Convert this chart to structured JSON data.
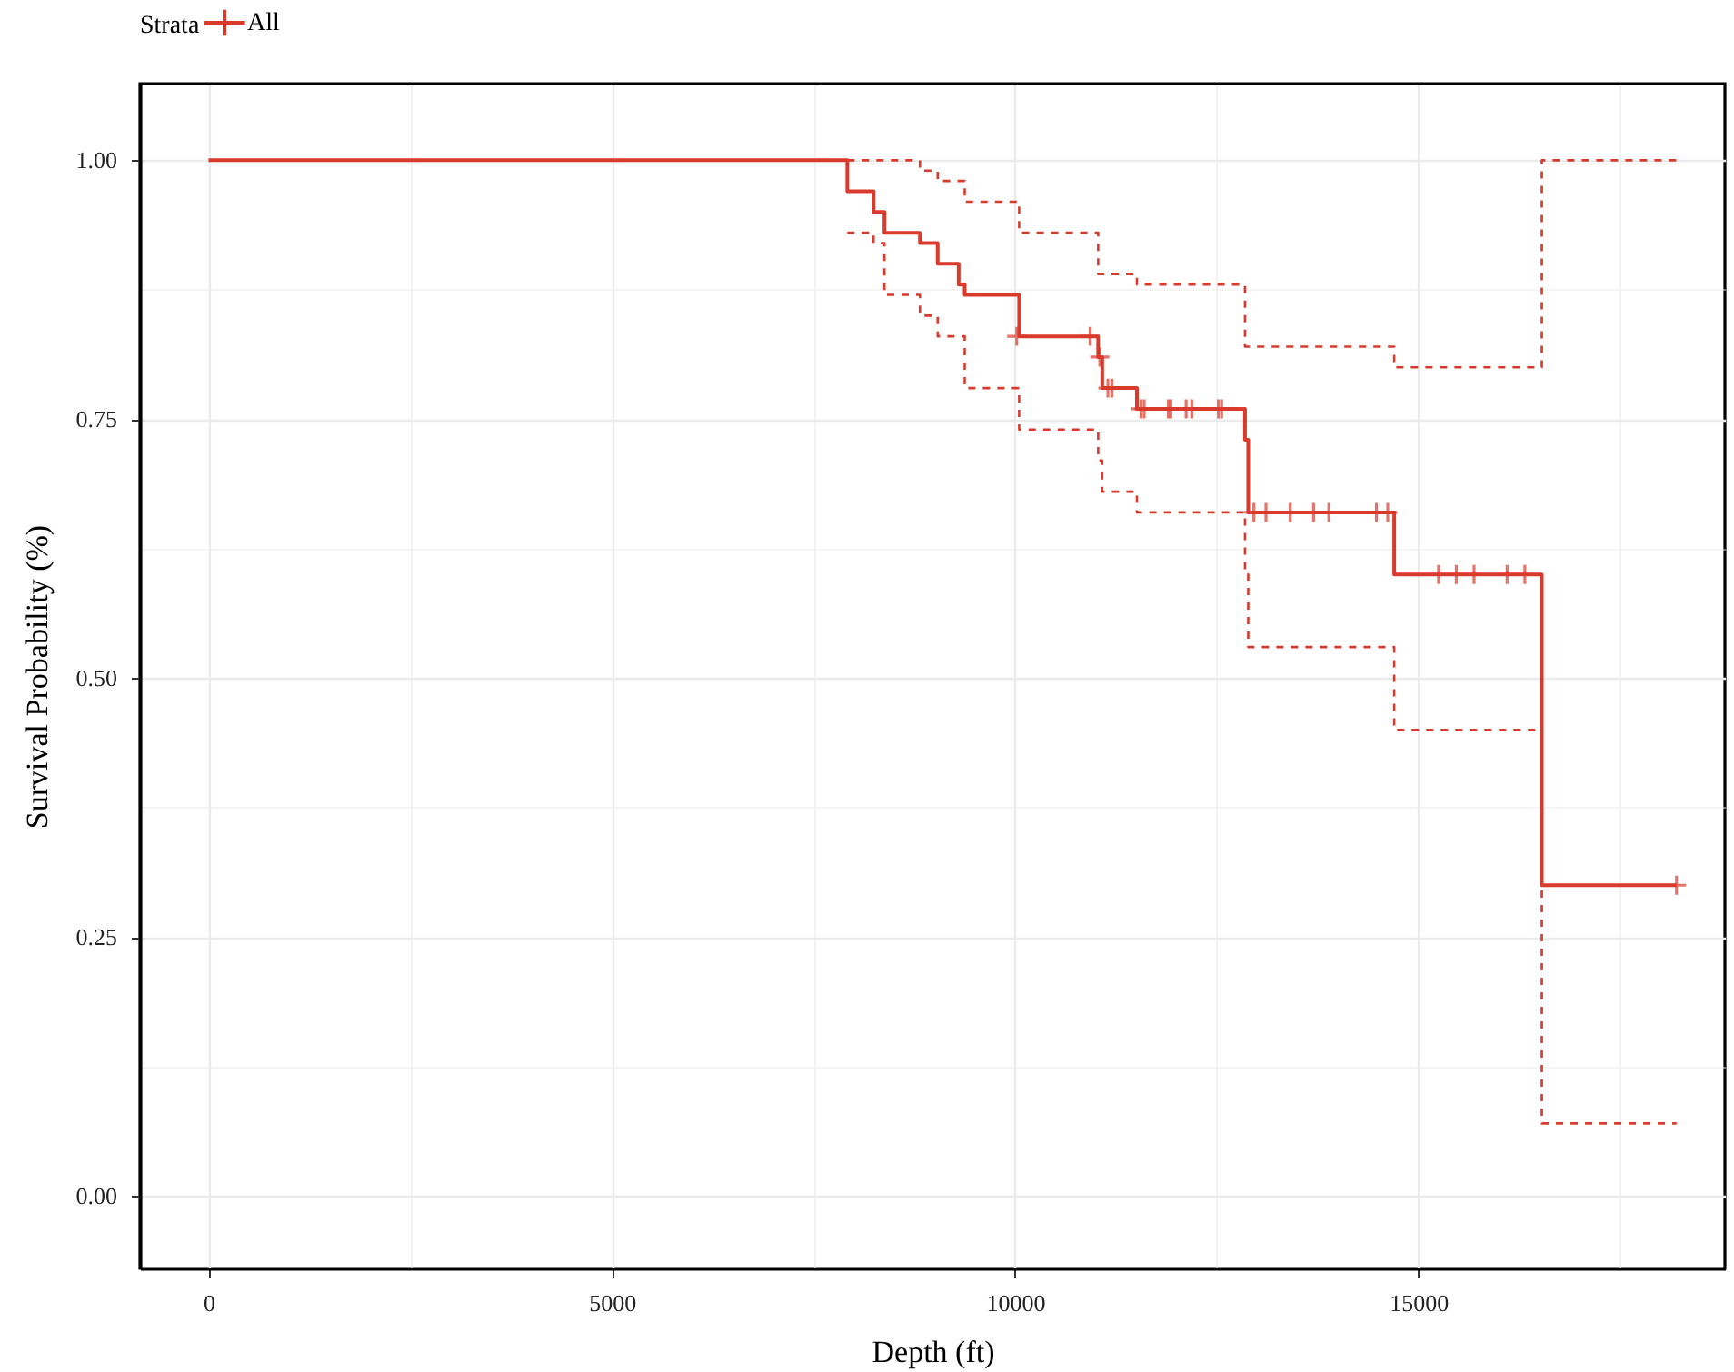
{
  "chart_data": {
    "type": "step",
    "xlabel": "Depth (ft)",
    "ylabel": "Survival Probability (%)",
    "legend_title": "Strata",
    "legend": "top",
    "grid": true,
    "xlim": [
      -850,
      18800
    ],
    "ylim": [
      -0.07,
      1.074
    ],
    "xticks": [
      0,
      {
        "value": 2500,
        "label": null
      },
      5000,
      {
        "value": 7500,
        "label": null
      },
      10000,
      {
        "value": 12500,
        "label": null
      },
      15000,
      {
        "value": 17500,
        "label": null
      }
    ],
    "yticks": [
      {
        "value": 0,
        "label": "0.00"
      },
      {
        "value": 0.125,
        "label": null
      },
      {
        "value": 0.25,
        "label": "0.25"
      },
      {
        "value": 0.375,
        "label": null
      },
      {
        "value": 0.5,
        "label": "0.50"
      },
      {
        "value": 0.625,
        "label": null
      },
      {
        "value": 0.75,
        "label": "0.75"
      },
      {
        "value": 0.875,
        "label": null
      },
      {
        "value": 1,
        "label": "1.00"
      }
    ],
    "series": [
      {
        "name": "All",
        "color": "#d93a2b",
        "line_style": "solid",
        "marker": "none",
        "x": [
          0,
          7920,
          8245,
          8380,
          8820,
          9040,
          9300,
          9375,
          10050,
          11030,
          11080,
          11510,
          12850,
          12890,
          14700,
          16530,
          18200
        ],
        "values": [
          1,
          0.97,
          0.95,
          0.93,
          0.92,
          0.9,
          0.88,
          0.87,
          0.83,
          0.81,
          0.78,
          0.76,
          0.73,
          0.66,
          0.6,
          0.3,
          0.3
        ]
      },
      {
        "type": "step",
        "color": "#d93a2b",
        "line_style": "dashed",
        "x": [
          7920,
          8245,
          8380,
          8820,
          9040,
          9300,
          9375,
          10050,
          11030,
          11080,
          11510,
          12850,
          12890,
          14700,
          16530,
          18200
        ],
        "values": [
          0.93,
          0.92,
          0.87,
          0.85,
          0.83,
          0.83,
          0.78,
          0.74,
          0.71,
          0.68,
          0.66,
          0.6,
          0.53,
          0.45,
          0.07,
          0.07
        ]
      },
      {
        "type": "step",
        "color": "#d93a2b",
        "line_style": "dashed",
        "x": [
          7920,
          8820,
          9040,
          9375,
          10050,
          11030,
          11510,
          12850,
          14700,
          16530,
          18200
        ],
        "values": [
          1,
          0.99,
          0.98,
          0.96,
          0.93,
          0.89,
          0.88,
          0.82,
          0.8,
          1,
          1
        ]
      },
      {
        "type": "scatter",
        "color": "#d93a2b",
        "marker": "cross",
        "x": [
          10020,
          10930,
          11050,
          11150,
          11200,
          11560,
          11600,
          11900,
          11930,
          12120,
          12190,
          12520,
          12560,
          12960,
          13110,
          13410,
          13700,
          13890,
          14480,
          14620,
          15250,
          15470,
          15690,
          16100,
          16320,
          18200
        ],
        "values": [
          0.83,
          0.83,
          0.81,
          0.78,
          0.78,
          0.76,
          0.76,
          0.76,
          0.76,
          0.76,
          0.76,
          0.76,
          0.76,
          0.66,
          0.66,
          0.66,
          0.66,
          0.66,
          0.66,
          0.66,
          0.6,
          0.6,
          0.6,
          0.6,
          0.6,
          0.3
        ]
      }
    ]
  }
}
